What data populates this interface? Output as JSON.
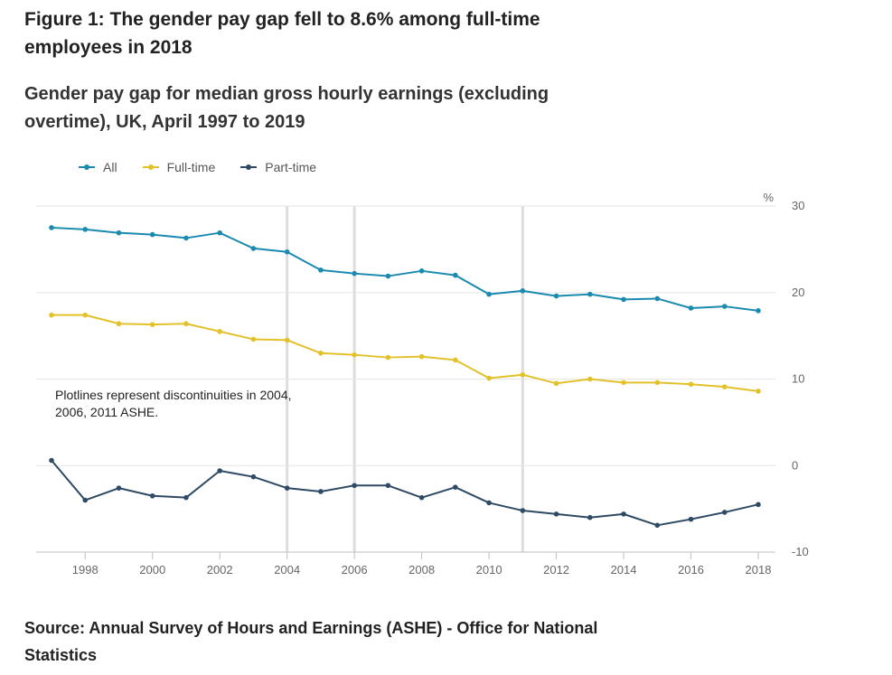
{
  "figure": {
    "title": "Figure 1: The gender pay gap fell to 8.6% among full-time employees in 2018",
    "subtitle": "Gender pay gap for median gross hourly earnings (excluding overtime), UK, April 1997 to 2019",
    "source": "Source: Annual Survey of Hours and Earnings (ASHE) - Office for National Statistics"
  },
  "chart_data": {
    "type": "line",
    "title": "Gender pay gap for median gross hourly earnings (excluding overtime), UK, April 1997 to 2019",
    "xlabel": "",
    "ylabel": "%",
    "ylim": [
      -10,
      30
    ],
    "xlim": [
      1997,
      2018
    ],
    "y_ticks": [
      "30",
      "20",
      "10",
      "0",
      "-10"
    ],
    "x_ticks": [
      "1998",
      "2000",
      "2002",
      "2004",
      "2006",
      "2008",
      "2010",
      "2012",
      "2014",
      "2016",
      "2018"
    ],
    "grid": "horizontal",
    "legend_position": "top-left",
    "x": [
      1997,
      1998,
      1999,
      2000,
      2001,
      2002,
      2003,
      2004,
      2005,
      2006,
      2007,
      2008,
      2009,
      2010,
      2011,
      2012,
      2013,
      2014,
      2015,
      2016,
      2017,
      2018
    ],
    "series": [
      {
        "name": "All",
        "color": "#1b8ab0",
        "values": [
          27.5,
          27.3,
          26.9,
          26.7,
          26.3,
          26.9,
          25.1,
          24.7,
          22.6,
          22.2,
          21.9,
          22.5,
          22.0,
          19.8,
          20.2,
          19.6,
          19.8,
          19.2,
          19.3,
          18.2,
          18.4,
          17.9
        ]
      },
      {
        "name": "Full-time",
        "color": "#e3c12b",
        "values": [
          17.4,
          17.4,
          16.4,
          16.3,
          16.4,
          15.5,
          14.6,
          14.5,
          13.0,
          12.8,
          12.5,
          12.6,
          12.2,
          10.1,
          10.5,
          9.5,
          10.0,
          9.6,
          9.6,
          9.4,
          9.1,
          8.6
        ]
      },
      {
        "name": "Part-time",
        "color": "#2e4a64",
        "values": [
          0.6,
          -4.0,
          -2.6,
          -3.5,
          -3.7,
          -0.6,
          -1.3,
          -2.6,
          -3.0,
          -2.3,
          -2.3,
          -3.7,
          -2.5,
          -4.3,
          -5.2,
          -5.6,
          -6.0,
          -5.6,
          -6.9,
          -6.2,
          -5.4,
          -4.5
        ]
      }
    ],
    "plotlines": {
      "x": [
        2004,
        2006,
        2011
      ]
    },
    "annotation": "Plotlines represent discontinuities in 2004, 2006, 2011 ASHE."
  }
}
